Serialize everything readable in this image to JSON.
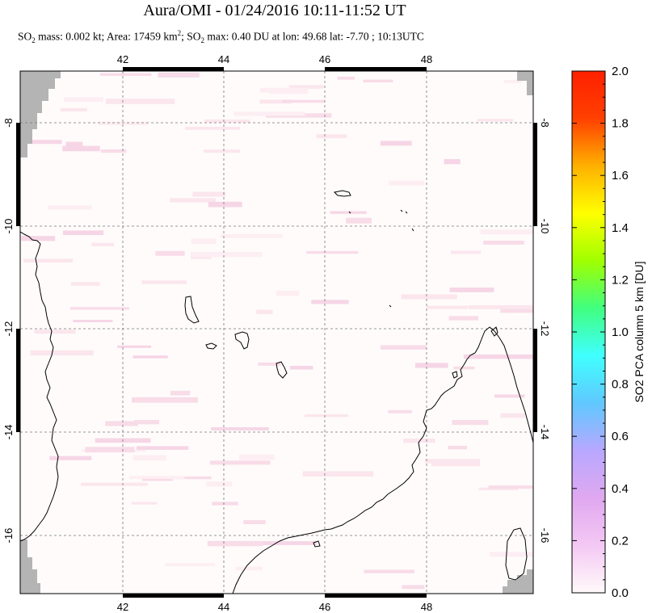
{
  "title": "Aura/OMI - 01/24/2016 10:11-11:52 UT",
  "subtitle": {
    "so2_label": "SO",
    "so2_sub": "2",
    "mass_text": " mass: 0.002 kt; Area: 17459 km",
    "area_sup": "2",
    "max_text": "; SO",
    "max_sub": "2",
    "rest_text": " max: 0.40 DU at lon: 49.68 lat: -7.70 ; 10:13UTC"
  },
  "map": {
    "lon_ticks": [
      "42",
      "44",
      "46",
      "48"
    ],
    "lat_ticks": [
      "-8",
      "-10",
      "-12",
      "-14",
      "-16"
    ],
    "grid": true,
    "no_data_color": "#b4b4b4",
    "coastline_color": "#000000"
  },
  "colorbar": {
    "label": "SO2 PCA column 5 km [DU]",
    "ticks": [
      "2.0",
      "1.8",
      "1.6",
      "1.4",
      "1.2",
      "1.0",
      "0.8",
      "0.6",
      "0.4",
      "0.2",
      "0.0"
    ],
    "min": 0.0,
    "max": 2.0,
    "colors": [
      "#fffafa",
      "#f4c8f4",
      "#e0a8f0",
      "#b8a8ff",
      "#60c8ff",
      "#40ffff",
      "#40ff80",
      "#a0ff00",
      "#ffff00",
      "#ffb000",
      "#ff4000",
      "#ff2000"
    ]
  }
}
